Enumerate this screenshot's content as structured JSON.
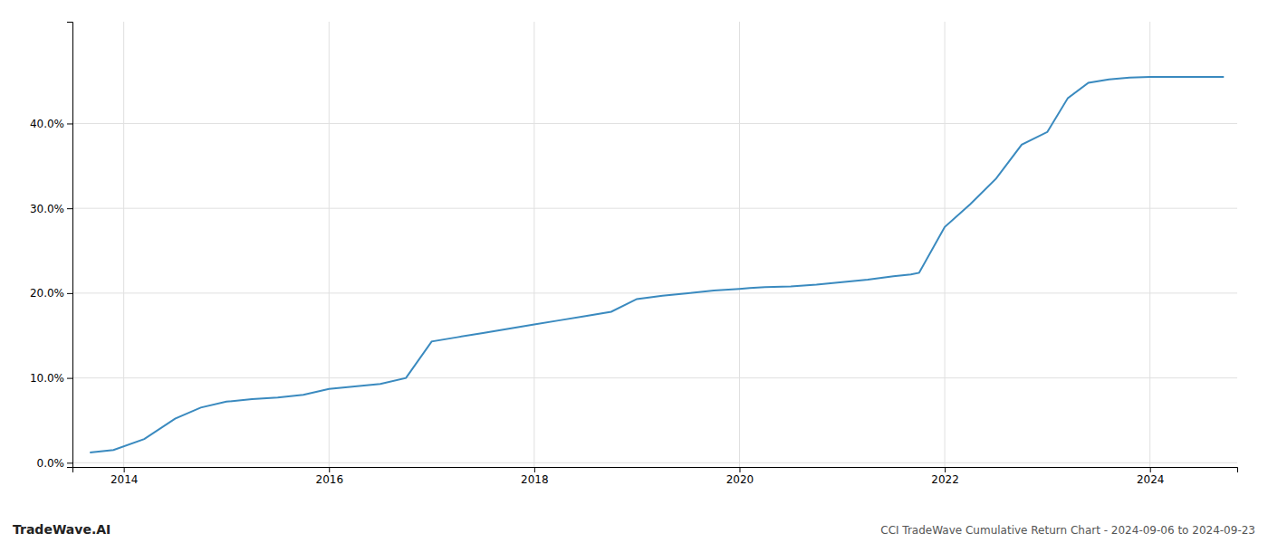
{
  "chart_data": {
    "type": "line",
    "title": "CCI TradeWave Cumulative Return Chart - 2024-09-06 to 2024-09-23",
    "annotations": [
      "TradeWave.AI"
    ],
    "color": "#3a8abf",
    "x": [
      2013.67,
      2013.9,
      2014.2,
      2014.5,
      2014.75,
      2015.0,
      2015.25,
      2015.5,
      2015.75,
      2016.0,
      2016.25,
      2016.5,
      2016.75,
      2017.0,
      2017.25,
      2017.5,
      2017.75,
      2018.0,
      2018.25,
      2018.5,
      2018.75,
      2019.0,
      2019.25,
      2019.5,
      2019.75,
      2020.0,
      2020.1,
      2020.25,
      2020.5,
      2020.75,
      2021.0,
      2021.25,
      2021.5,
      2021.67,
      2021.75,
      2022.0,
      2022.25,
      2022.5,
      2022.75,
      2023.0,
      2023.2,
      2023.4,
      2023.6,
      2023.8,
      2024.0,
      2024.3,
      2024.72
    ],
    "values": [
      0.012,
      0.015,
      0.028,
      0.052,
      0.065,
      0.072,
      0.075,
      0.077,
      0.08,
      0.087,
      0.09,
      0.093,
      0.1,
      0.143,
      0.148,
      0.153,
      0.158,
      0.163,
      0.168,
      0.173,
      0.178,
      0.193,
      0.197,
      0.2,
      0.203,
      0.205,
      0.206,
      0.207,
      0.208,
      0.21,
      0.213,
      0.216,
      0.22,
      0.222,
      0.224,
      0.278,
      0.305,
      0.335,
      0.375,
      0.39,
      0.43,
      0.448,
      0.452,
      0.454,
      0.455,
      0.455,
      0.455
    ],
    "xlim": [
      2013.5,
      2024.85
    ],
    "ylim": [
      -0.005,
      0.52
    ],
    "xticks": [
      2014,
      2016,
      2018,
      2020,
      2022,
      2024
    ],
    "yticks": [
      {
        "value": 0.0,
        "label": "0.0%"
      },
      {
        "value": 0.1,
        "label": "10.0%"
      },
      {
        "value": 0.2,
        "label": "20.0%"
      },
      {
        "value": 0.3,
        "label": "30.0%"
      },
      {
        "value": 0.4,
        "label": "40.0%"
      }
    ],
    "grid": true
  }
}
